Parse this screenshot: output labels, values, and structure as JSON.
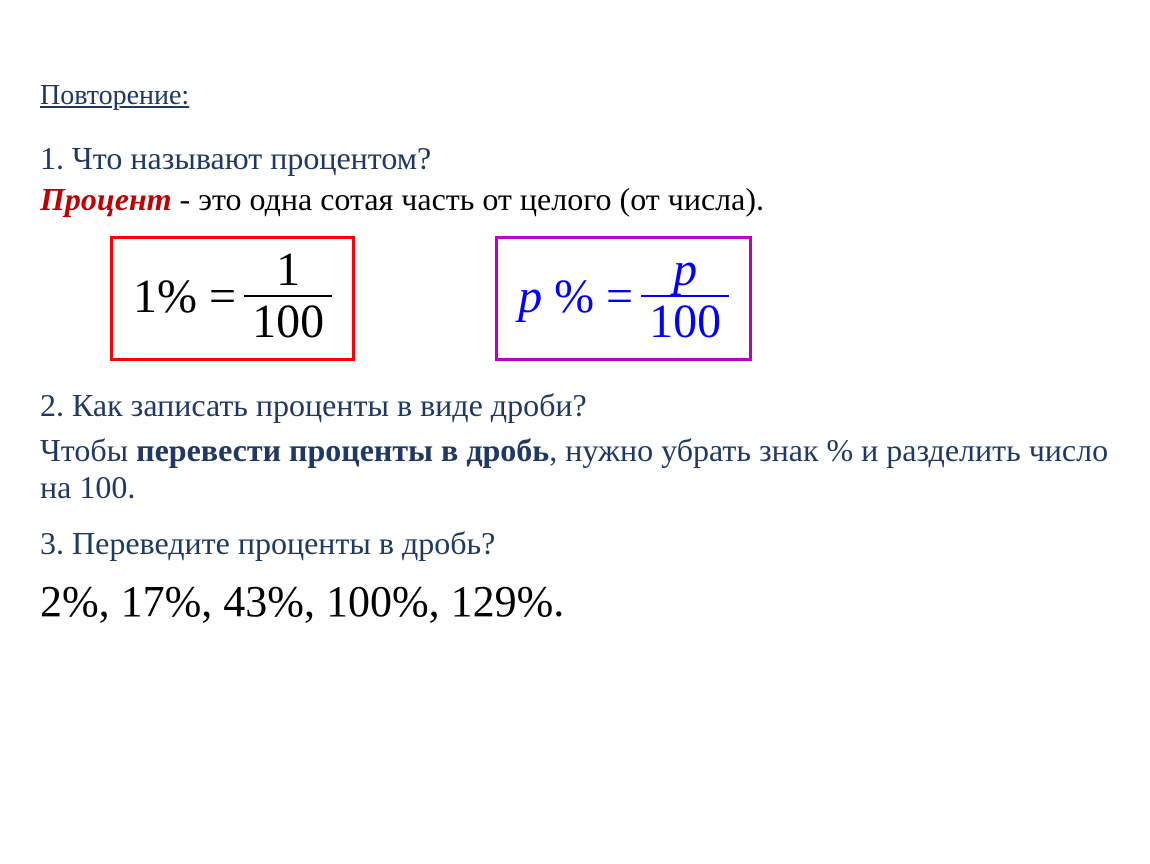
{
  "colors": {
    "heading": "#1f3864",
    "question": "#1f3864",
    "definition_term": "#c00000",
    "definition_text": "#000000",
    "answer": "#1f3864",
    "box1_border": "#ff0000",
    "box1_text": "#000000",
    "box2_border": "#c000c0",
    "box2_text": "#0000ff",
    "background": "#ffffff",
    "exercise_text": "#000000"
  },
  "fonts": {
    "family": "Times New Roman",
    "heading_size_pt": 21,
    "body_size_pt": 24,
    "formula_size_pt": 36,
    "exercise_size_pt": 33
  },
  "heading": "Повторение:",
  "q1": {
    "number": "1.",
    "text": "Что называют процентом?",
    "definition_term": "Процент",
    "definition_rest": " - это одна сотая часть от целого  (от числа)."
  },
  "formula1": {
    "lhs": "1%",
    "eq": "=",
    "num": "1",
    "den": "100",
    "border_color": "#ff0000",
    "text_color": "#000000"
  },
  "formula2": {
    "lhs_var": "p",
    "lhs_pct": "%",
    "eq": "=",
    "num": "p",
    "den": "100",
    "border_color": "#c000c0",
    "text_color": "#0000ff"
  },
  "q2": {
    "number": "2.",
    "text": "Как записать проценты в виде дроби?",
    "answer_pre": "Чтобы ",
    "answer_bold": "перевести проценты в дробь",
    "answer_post": ", нужно убрать знак % и разделить число на 100."
  },
  "q3": {
    "number": "3.",
    "text": "Переведите проценты в дробь?",
    "values": "2%, 17%, 43%, 100%, 129%."
  }
}
